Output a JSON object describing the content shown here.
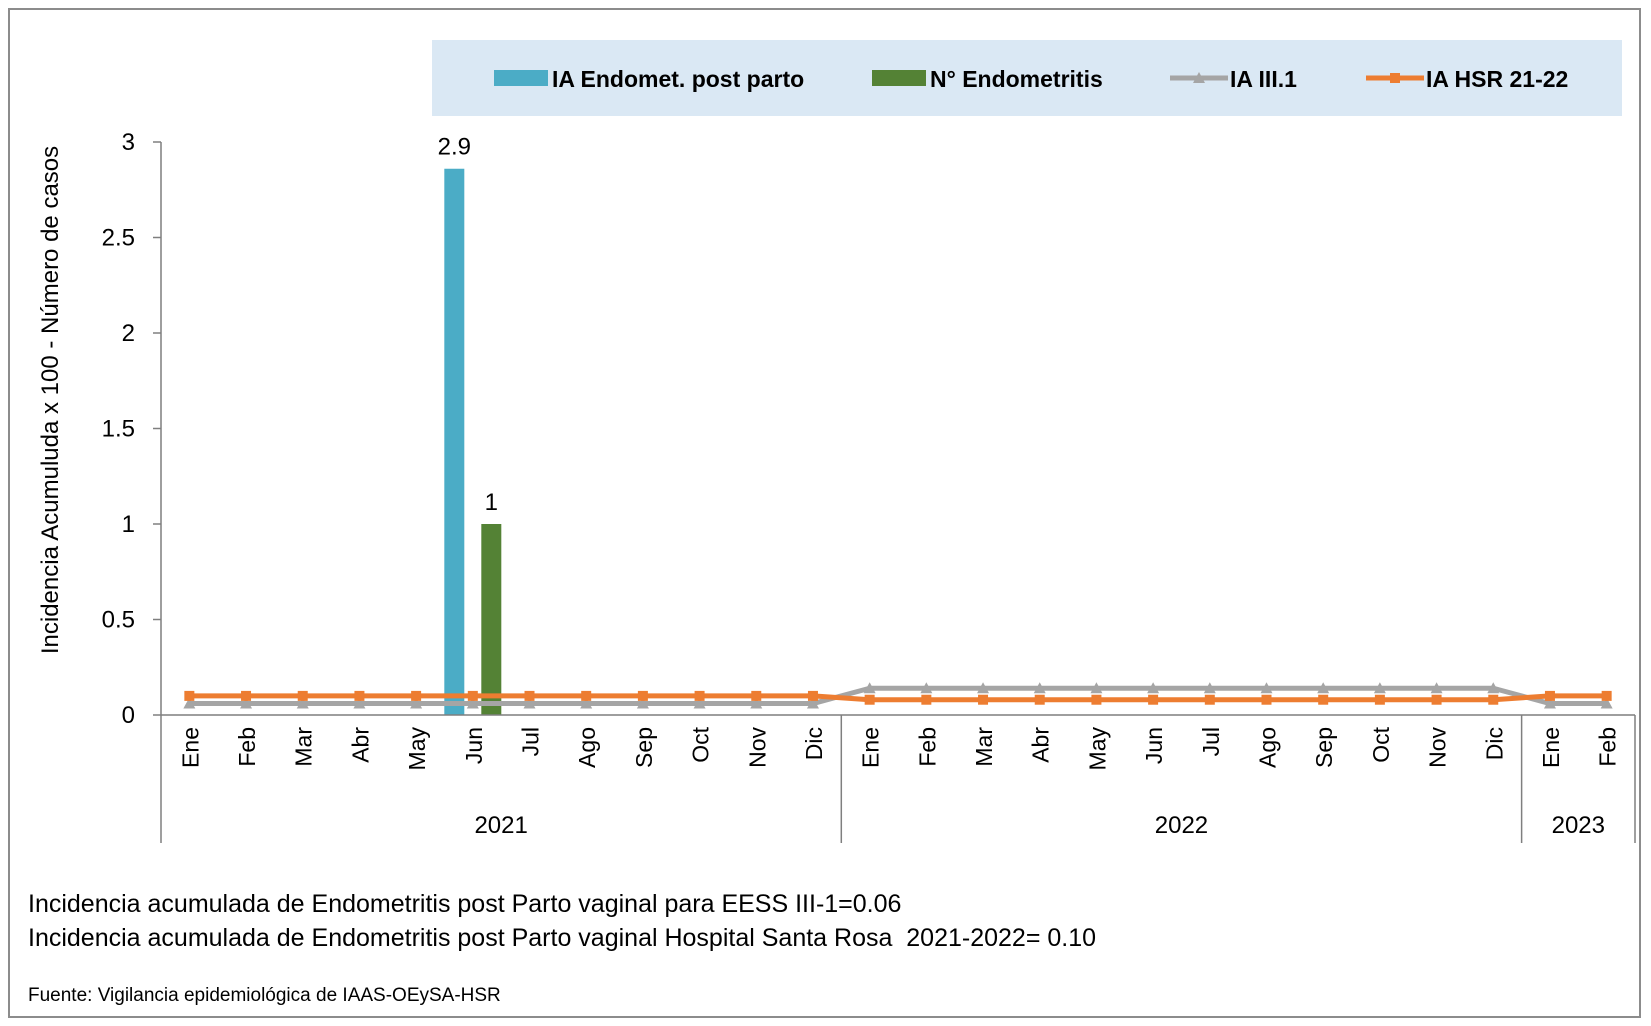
{
  "chart_data": {
    "type": "bar+line",
    "ylabel": "Incidencia Acumuluda x 100 - Número de casos",
    "ylim": [
      0,
      3
    ],
    "yticks": [
      0,
      0.5,
      1,
      1.5,
      2,
      2.5,
      3
    ],
    "ytick_labels": [
      "0",
      "0.5",
      "1",
      "1.5",
      "2",
      "2.5",
      "3"
    ],
    "categories": [
      "Ene",
      "Feb",
      "Mar",
      "Abr",
      "May",
      "Jun",
      "Jul",
      "Ago",
      "Sep",
      "Oct",
      "Nov",
      "Dic",
      "Ene",
      "Feb",
      "Mar",
      "Abr",
      "May",
      "Jun",
      "Jul",
      "Ago",
      "Sep",
      "Oct",
      "Nov",
      "Dic",
      "Ene",
      "Feb"
    ],
    "year_groups": [
      {
        "label": "2021",
        "count": 12
      },
      {
        "label": "2022",
        "count": 12
      },
      {
        "label": "2023",
        "count": 2
      }
    ],
    "series": [
      {
        "name": "IA Endomet. post parto",
        "kind": "bar",
        "color": "#4bacc6",
        "values": [
          0,
          0,
          0,
          0,
          0,
          2.86,
          0,
          0,
          0,
          0,
          0,
          0,
          0,
          0,
          0,
          0,
          0,
          0,
          0,
          0,
          0,
          0,
          0,
          0,
          0,
          0
        ],
        "data_labels": {
          "5": "2.9"
        }
      },
      {
        "name": "N°  Endometritis",
        "kind": "bar",
        "color": "#548235",
        "values": [
          0,
          0,
          0,
          0,
          0,
          1,
          0,
          0,
          0,
          0,
          0,
          0,
          0,
          0,
          0,
          0,
          0,
          0,
          0,
          0,
          0,
          0,
          0,
          0,
          0,
          0
        ],
        "data_labels": {
          "5": "1"
        }
      },
      {
        "name": "IA  III.1",
        "kind": "line",
        "marker": "triangle",
        "color": "#a5a5a5",
        "values": [
          0.06,
          0.06,
          0.06,
          0.06,
          0.06,
          0.06,
          0.06,
          0.06,
          0.06,
          0.06,
          0.06,
          0.06,
          0.14,
          0.14,
          0.14,
          0.14,
          0.14,
          0.14,
          0.14,
          0.14,
          0.14,
          0.14,
          0.14,
          0.14,
          0.06,
          0.06
        ]
      },
      {
        "name": "IA HSR 21-22",
        "kind": "line",
        "marker": "square",
        "color": "#ed7d31",
        "values": [
          0.1,
          0.1,
          0.1,
          0.1,
          0.1,
          0.1,
          0.1,
          0.1,
          0.1,
          0.1,
          0.1,
          0.1,
          0.08,
          0.08,
          0.08,
          0.08,
          0.08,
          0.08,
          0.08,
          0.08,
          0.08,
          0.08,
          0.08,
          0.08,
          0.1,
          0.1
        ]
      }
    ],
    "legend_position": "top",
    "legend_background": "#dae8f4",
    "grid": false
  },
  "footnotes": {
    "line1": "Incidencia acumulada de Endometritis post Parto vaginal para EESS III-1=0.06",
    "line2": "Incidencia acumulada de Endometritis post Parto vaginal Hospital Santa Rosa  2021-2022= 0.10",
    "source": "Fuente: Vigilancia epidemiológica de IAAS-OEySA-HSR"
  }
}
